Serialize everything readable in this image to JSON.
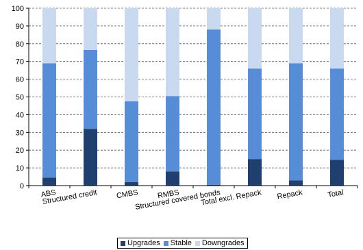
{
  "chart_data": {
    "type": "bar",
    "stacked": true,
    "categories": [
      "ABS",
      "Structured credit",
      "CMBS",
      "RMBS",
      "Structured covered bonds",
      "Total excl. Repack",
      "Repack",
      "Total"
    ],
    "series": [
      {
        "name": "Upgrades",
        "color": "#1f3f6e",
        "values": [
          4.5,
          32,
          2,
          8,
          0.5,
          15,
          3,
          14.5
        ]
      },
      {
        "name": "Stable",
        "color": "#578dd6",
        "values": [
          64.5,
          44.5,
          45.5,
          42.5,
          87.5,
          51,
          66,
          51.5
        ]
      },
      {
        "name": "Downgrades",
        "color": "#c8d9f0",
        "values": [
          31,
          23.5,
          52.5,
          49.5,
          12,
          34,
          31,
          34
        ]
      }
    ],
    "ylim": [
      0,
      100
    ],
    "yticks": [
      0,
      10,
      20,
      30,
      40,
      50,
      60,
      70,
      80,
      90,
      100
    ],
    "grid": "horizontal dashed",
    "legend_position": "bottom"
  }
}
